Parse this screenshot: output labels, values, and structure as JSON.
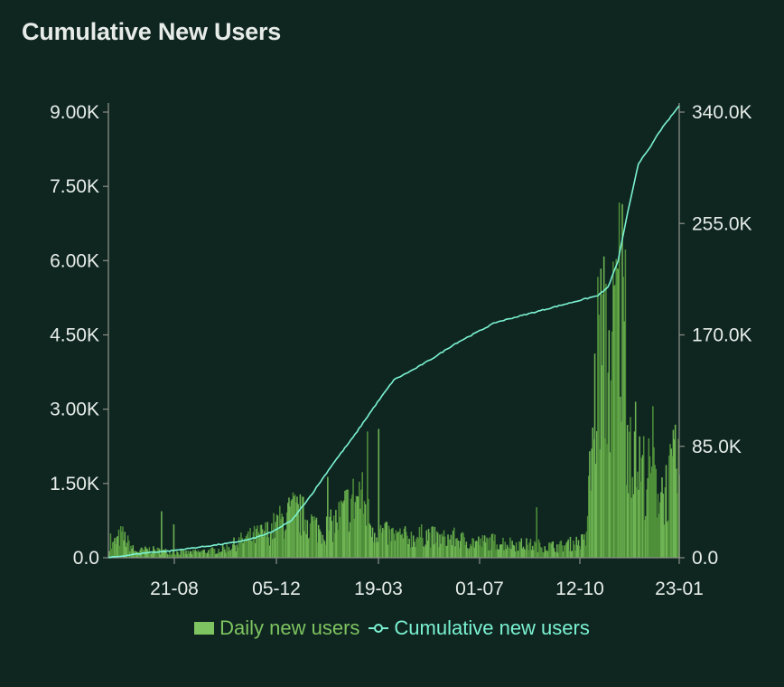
{
  "page": {
    "title": "Cumulative New Users"
  },
  "chart_data": {
    "type": "bar",
    "title": "Cumulative New Users",
    "x_ticks": [
      "21-08",
      "05-12",
      "19-03",
      "01-07",
      "12-10",
      "23-01"
    ],
    "y_left": {
      "ticks": [
        "9.00K",
        "7.50K",
        "6.00K",
        "4.50K",
        "3.00K",
        "1.50K",
        "0.0"
      ],
      "ylim": [
        0,
        9000
      ]
    },
    "y_right": {
      "ticks": [
        "340.0K",
        "255.0K",
        "170.0K",
        "85.0K",
        "0.0"
      ],
      "ylim": [
        0,
        340000
      ]
    },
    "series": [
      {
        "name": "Daily new users",
        "type": "bar",
        "axis": "left",
        "color": "#7ec460",
        "x": [
          0,
          13,
          26,
          39,
          52,
          65,
          78,
          91,
          104,
          117,
          130,
          143,
          156,
          169,
          182,
          195,
          208,
          221,
          234,
          247,
          260,
          273,
          286,
          299,
          312,
          325,
          338,
          351,
          364,
          377,
          390,
          403,
          416,
          429,
          442,
          455,
          468,
          481,
          494,
          500,
          510,
          520,
          533,
          546,
          560
        ],
        "values": [
          150,
          450,
          120,
          160,
          130,
          110,
          100,
          120,
          140,
          200,
          330,
          420,
          500,
          700,
          900,
          760,
          520,
          650,
          1000,
          1250,
          560,
          460,
          420,
          390,
          460,
          360,
          390,
          330,
          300,
          320,
          290,
          260,
          250,
          230,
          220,
          280,
          330,
          4100,
          3800,
          5200,
          2700,
          1800,
          1500,
          1300,
          1900
        ],
        "peaks": [
          {
            "x": 2,
            "value": 480
          },
          {
            "x": 52,
            "value": 920
          },
          {
            "x": 64,
            "value": 660
          },
          {
            "x": 215,
            "value": 1600
          },
          {
            "x": 254,
            "value": 2500
          },
          {
            "x": 265,
            "value": 2550
          },
          {
            "x": 420,
            "value": 1000
          },
          {
            "x": 504,
            "value": 7000
          },
          {
            "x": 507,
            "value": 6100
          },
          {
            "x": 534,
            "value": 3000
          }
        ]
      },
      {
        "name": "Cumulative new users",
        "type": "line",
        "axis": "right",
        "color": "#7bf2d2",
        "x": [
          0,
          40,
          60,
          80,
          100,
          120,
          140,
          160,
          180,
          200,
          220,
          240,
          260,
          280,
          300,
          320,
          340,
          360,
          380,
          400,
          420,
          440,
          460,
          480,
          490,
          500,
          510,
          520,
          530,
          540,
          550,
          560
        ],
        "values": [
          0,
          4000,
          5000,
          7000,
          9000,
          11000,
          14000,
          19000,
          28000,
          48000,
          70000,
          90000,
          112000,
          133000,
          141000,
          150000,
          160000,
          168000,
          176000,
          180000,
          184000,
          188000,
          192000,
          196000,
          202000,
          222000,
          260000,
          295000,
          305000,
          318000,
          328000,
          338000
        ]
      }
    ],
    "legend": "bottom-center",
    "grid": false
  },
  "legend": {
    "daily_label": "Daily new users",
    "cumulative_label": "Cumulative new users",
    "daily_color": "#7ec460",
    "cumulative_color": "#7bf2d2"
  }
}
